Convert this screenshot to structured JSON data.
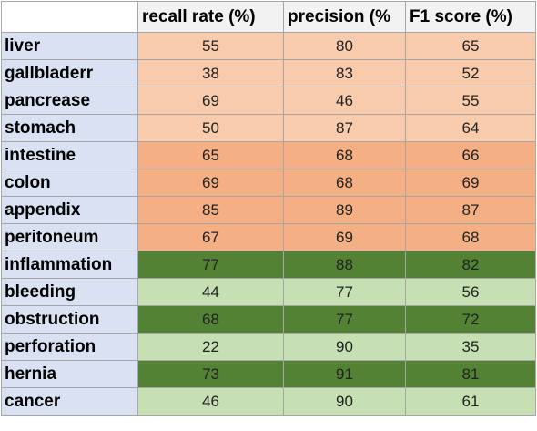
{
  "chart_data": {
    "type": "table",
    "title": "",
    "columns": [
      "recall rate (%)",
      "precision (%",
      "F1 score (%)"
    ],
    "rows": [
      {
        "label": "liver",
        "values": [
          55,
          80,
          65
        ],
        "color": "#f8cbad"
      },
      {
        "label": "gallbladerr",
        "values": [
          38,
          83,
          52
        ],
        "color": "#f8cbad"
      },
      {
        "label": "pancrease",
        "values": [
          69,
          46,
          55
        ],
        "color": "#f8cbad"
      },
      {
        "label": "stomach",
        "values": [
          50,
          87,
          64
        ],
        "color": "#f8cbad"
      },
      {
        "label": "intestine",
        "values": [
          65,
          68,
          66
        ],
        "color": "#f4b084"
      },
      {
        "label": "colon",
        "values": [
          69,
          68,
          69
        ],
        "color": "#f4b084"
      },
      {
        "label": "appendix",
        "values": [
          85,
          89,
          87
        ],
        "color": "#f4b084"
      },
      {
        "label": "peritoneum",
        "values": [
          67,
          69,
          68
        ],
        "color": "#f4b084"
      },
      {
        "label": "inflammation",
        "values": [
          77,
          88,
          82
        ],
        "color": "#548235"
      },
      {
        "label": "bleeding",
        "values": [
          44,
          77,
          56
        ],
        "color": "#c6e0b4"
      },
      {
        "label": "obstruction",
        "values": [
          68,
          77,
          72
        ],
        "color": "#548235"
      },
      {
        "label": "perforation",
        "values": [
          22,
          90,
          35
        ],
        "color": "#c6e0b4"
      },
      {
        "label": "hernia",
        "values": [
          73,
          91,
          81
        ],
        "color": "#548235"
      },
      {
        "label": "cancer",
        "values": [
          46,
          90,
          61
        ],
        "color": "#c6e0b4"
      }
    ],
    "colors": {
      "label_cell": "#d9e1f2",
      "header_cell": "#f2f2f2",
      "border": "#a6a6a6"
    }
  }
}
